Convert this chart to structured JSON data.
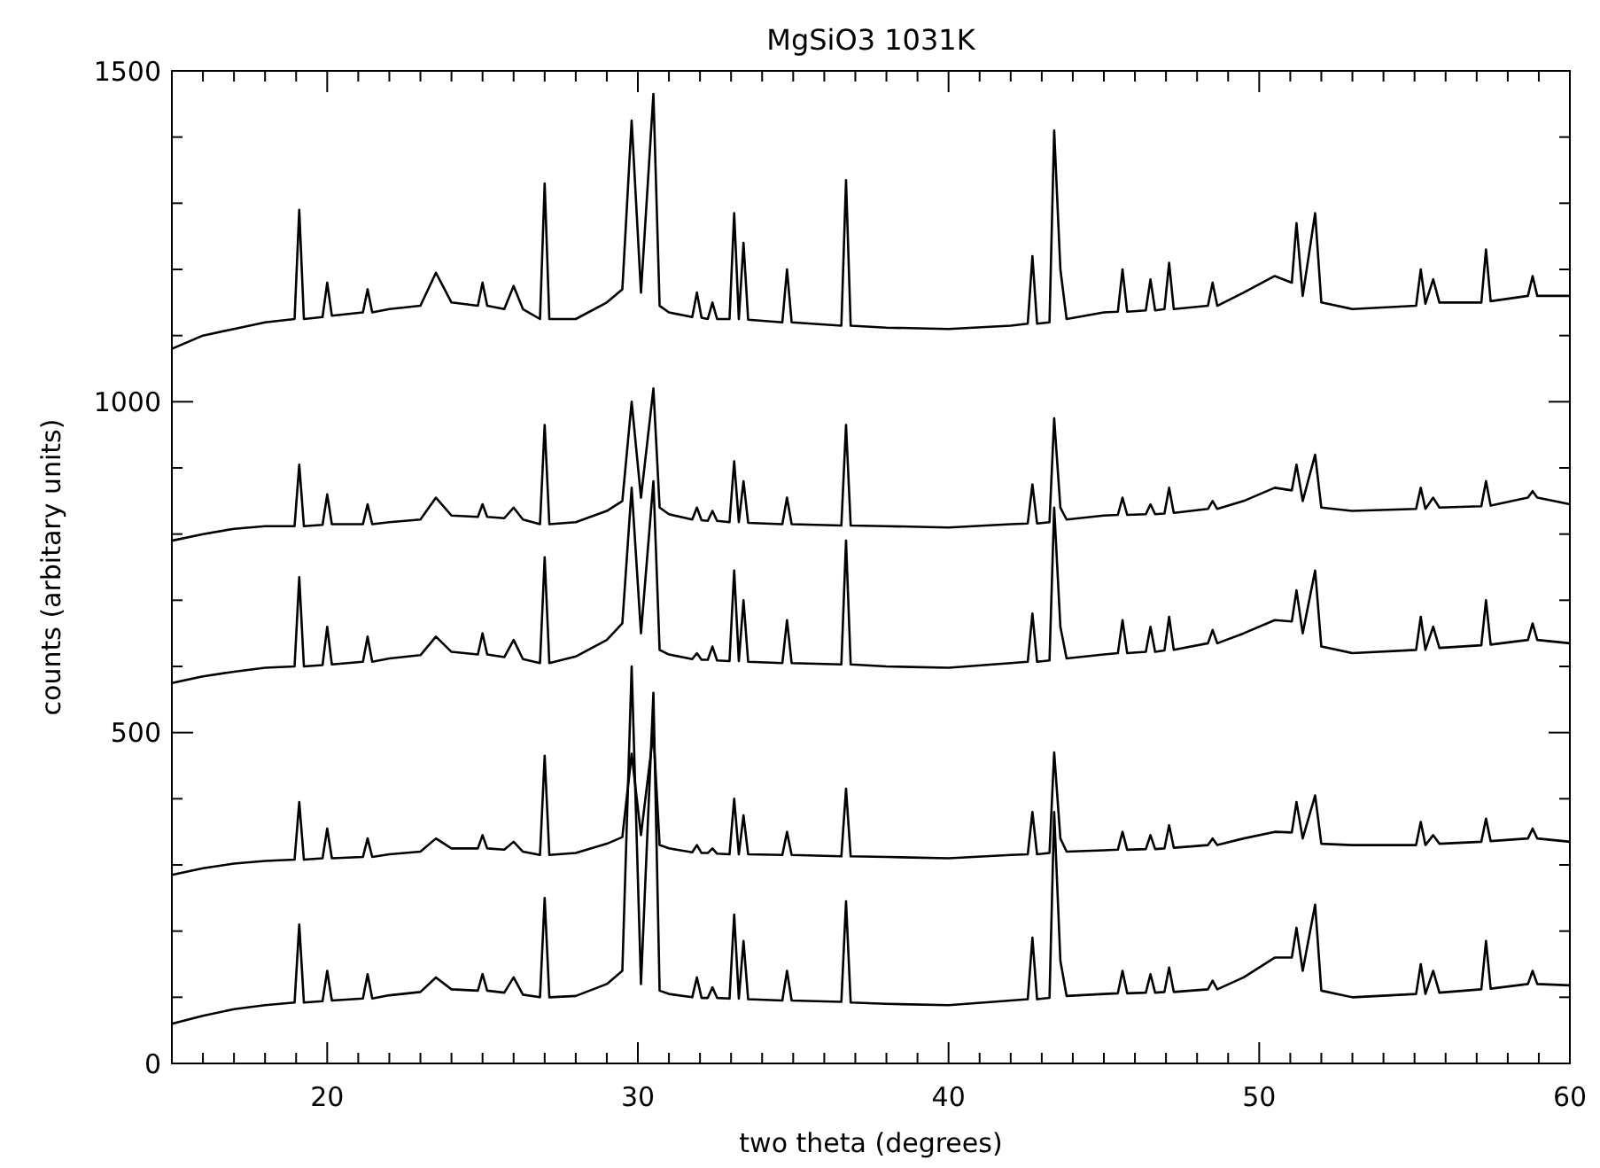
{
  "chart_data": {
    "type": "line",
    "title": "MgSiO3 1031K",
    "xlabel": "two theta (degrees)",
    "ylabel": "counts (arbitary units)",
    "xlim": [
      15,
      60
    ],
    "ylim": [
      0,
      1500
    ],
    "xticks": [
      {
        "value": 16,
        "label": null
      },
      {
        "value": 17,
        "label": null
      },
      {
        "value": 18,
        "label": null
      },
      {
        "value": 19,
        "label": null
      },
      20,
      {
        "value": 21,
        "label": null
      },
      {
        "value": 22,
        "label": null
      },
      {
        "value": 23,
        "label": null
      },
      {
        "value": 24,
        "label": null
      },
      {
        "value": 25,
        "label": null
      },
      {
        "value": 26,
        "label": null
      },
      {
        "value": 27,
        "label": null
      },
      {
        "value": 28,
        "label": null
      },
      {
        "value": 29,
        "label": null
      },
      30,
      {
        "value": 31,
        "label": null
      },
      {
        "value": 32,
        "label": null
      },
      {
        "value": 33,
        "label": null
      },
      {
        "value": 34,
        "label": null
      },
      {
        "value": 35,
        "label": null
      },
      {
        "value": 36,
        "label": null
      },
      {
        "value": 37,
        "label": null
      },
      {
        "value": 38,
        "label": null
      },
      {
        "value": 39,
        "label": null
      },
      40,
      {
        "value": 41,
        "label": null
      },
      {
        "value": 42,
        "label": null
      },
      {
        "value": 43,
        "label": null
      },
      {
        "value": 44,
        "label": null
      },
      {
        "value": 45,
        "label": null
      },
      {
        "value": 46,
        "label": null
      },
      {
        "value": 47,
        "label": null
      },
      {
        "value": 48,
        "label": null
      },
      {
        "value": 49,
        "label": null
      },
      50,
      {
        "value": 51,
        "label": null
      },
      {
        "value": 52,
        "label": null
      },
      {
        "value": 53,
        "label": null
      },
      {
        "value": 54,
        "label": null
      },
      {
        "value": 55,
        "label": null
      },
      {
        "value": 56,
        "label": null
      },
      {
        "value": 57,
        "label": null
      },
      {
        "value": 58,
        "label": null
      },
      {
        "value": 59,
        "label": null
      },
      60
    ],
    "yticks": [
      0,
      {
        "value": 100,
        "label": null
      },
      {
        "value": 200,
        "label": null
      },
      {
        "value": 300,
        "label": null
      },
      {
        "value": 400,
        "label": null
      },
      500,
      {
        "value": 600,
        "label": null
      },
      {
        "value": 700,
        "label": null
      },
      {
        "value": 800,
        "label": null
      },
      {
        "value": 900,
        "label": null
      },
      1000,
      {
        "value": 1100,
        "label": null
      },
      {
        "value": 1200,
        "label": null
      },
      {
        "value": 1300,
        "label": null
      },
      {
        "value": 1400,
        "label": null
      },
      1500
    ],
    "x": [
      15,
      16,
      17,
      18,
      18.95,
      19.1,
      19.25,
      19.85,
      20.0,
      20.15,
      21.15,
      21.3,
      21.45,
      22,
      23,
      23.5,
      24,
      24.85,
      25.0,
      25.15,
      25.7,
      26.0,
      26.3,
      26.85,
      27.0,
      27.15,
      28,
      29,
      29.5,
      29.8,
      30.1,
      30.5,
      30.7,
      31,
      31.75,
      31.9,
      32.05,
      32.25,
      32.4,
      32.55,
      32.95,
      33.1,
      33.25,
      33.4,
      33.55,
      34.65,
      34.8,
      34.95,
      36.55,
      36.7,
      36.85,
      38,
      40,
      42,
      42.55,
      42.7,
      42.85,
      43.25,
      43.4,
      43.6,
      43.8,
      45,
      45.45,
      45.6,
      45.75,
      46.35,
      46.5,
      46.65,
      46.95,
      47.1,
      47.25,
      48.35,
      48.5,
      48.65,
      49.5,
      50.5,
      51.05,
      51.2,
      51.4,
      51.8,
      52.0,
      53,
      55.05,
      55.2,
      55.35,
      55.6,
      55.8,
      57.15,
      57.3,
      57.45,
      58.65,
      58.8,
      58.95,
      60
    ],
    "series": [
      {
        "color": "#000000",
        "values": [
          1080,
          1100,
          1110,
          1120,
          1125,
          1290,
          1125,
          1128,
          1180,
          1130,
          1135,
          1170,
          1135,
          1140,
          1145,
          1195,
          1150,
          1145,
          1180,
          1145,
          1140,
          1175,
          1140,
          1125,
          1330,
          1125,
          1125,
          1150,
          1170,
          1425,
          1165,
          1465,
          1145,
          1135,
          1128,
          1165,
          1127,
          1125,
          1150,
          1125,
          1125,
          1285,
          1125,
          1240,
          1124,
          1120,
          1200,
          1120,
          1115,
          1335,
          1115,
          1112,
          1110,
          1115,
          1118,
          1220,
          1118,
          1120,
          1410,
          1200,
          1125,
          1135,
          1136,
          1200,
          1136,
          1138,
          1185,
          1138,
          1140,
          1210,
          1140,
          1145,
          1180,
          1145,
          1165,
          1190,
          1180,
          1270,
          1160,
          1285,
          1150,
          1140,
          1145,
          1200,
          1148,
          1185,
          1150,
          1150,
          1230,
          1152,
          1160,
          1190,
          1160,
          1160
        ]
      },
      {
        "color": "#000000",
        "values": [
          790,
          800,
          808,
          812,
          812,
          905,
          812,
          814,
          860,
          815,
          815,
          845,
          815,
          818,
          822,
          855,
          828,
          826,
          845,
          826,
          824,
          840,
          822,
          815,
          965,
          815,
          818,
          835,
          850,
          1000,
          855,
          1020,
          840,
          830,
          822,
          840,
          821,
          820,
          835,
          820,
          818,
          910,
          818,
          880,
          817,
          815,
          855,
          815,
          813,
          965,
          813,
          812,
          810,
          815,
          816,
          875,
          816,
          818,
          975,
          840,
          822,
          828,
          829,
          855,
          829,
          830,
          845,
          830,
          831,
          870,
          832,
          838,
          850,
          838,
          850,
          870,
          866,
          905,
          850,
          920,
          840,
          835,
          838,
          870,
          838,
          855,
          840,
          842,
          880,
          843,
          855,
          865,
          855,
          845
        ]
      },
      {
        "color": "#000000",
        "values": [
          575,
          585,
          592,
          598,
          600,
          735,
          600,
          602,
          660,
          603,
          607,
          645,
          607,
          612,
          617,
          645,
          622,
          618,
          650,
          618,
          614,
          640,
          611,
          605,
          765,
          605,
          615,
          640,
          665,
          870,
          650,
          880,
          625,
          618,
          611,
          620,
          610,
          610,
          630,
          609,
          608,
          745,
          608,
          700,
          607,
          605,
          670,
          605,
          603,
          790,
          603,
          600,
          598,
          605,
          607,
          680,
          607,
          609,
          840,
          660,
          612,
          618,
          620,
          670,
          620,
          622,
          660,
          622,
          624,
          675,
          625,
          635,
          655,
          635,
          650,
          670,
          668,
          715,
          650,
          745,
          630,
          620,
          625,
          675,
          625,
          660,
          628,
          632,
          700,
          633,
          640,
          665,
          640,
          635
        ]
      },
      {
        "color": "#000000",
        "values": [
          285,
          295,
          302,
          306,
          308,
          395,
          308,
          310,
          355,
          310,
          312,
          340,
          312,
          316,
          320,
          340,
          325,
          325,
          345,
          325,
          323,
          335,
          320,
          315,
          465,
          315,
          318,
          332,
          342,
          468,
          345,
          500,
          330,
          325,
          319,
          330,
          318,
          318,
          325,
          317,
          316,
          400,
          316,
          375,
          316,
          315,
          350,
          315,
          313,
          415,
          313,
          312,
          310,
          315,
          316,
          380,
          316,
          318,
          470,
          340,
          320,
          322,
          323,
          350,
          323,
          324,
          345,
          324,
          325,
          360,
          326,
          330,
          340,
          330,
          340,
          350,
          349,
          395,
          340,
          405,
          332,
          330,
          330,
          365,
          330,
          345,
          332,
          335,
          370,
          336,
          340,
          355,
          340,
          335
        ]
      },
      {
        "color": "#000000",
        "values": [
          60,
          72,
          82,
          88,
          92,
          210,
          92,
          94,
          140,
          95,
          98,
          135,
          98,
          103,
          108,
          130,
          112,
          110,
          135,
          110,
          107,
          130,
          104,
          100,
          250,
          100,
          102,
          120,
          140,
          600,
          120,
          560,
          110,
          105,
          100,
          130,
          99,
          99,
          115,
          99,
          98,
          225,
          98,
          185,
          97,
          95,
          140,
          95,
          93,
          245,
          92,
          90,
          88,
          95,
          97,
          190,
          97,
          99,
          380,
          155,
          102,
          105,
          106,
          140,
          106,
          107,
          135,
          107,
          108,
          145,
          108,
          112,
          125,
          112,
          130,
          160,
          160,
          205,
          140,
          240,
          110,
          100,
          105,
          150,
          105,
          140,
          107,
          112,
          185,
          113,
          120,
          140,
          120,
          118
        ]
      }
    ]
  }
}
